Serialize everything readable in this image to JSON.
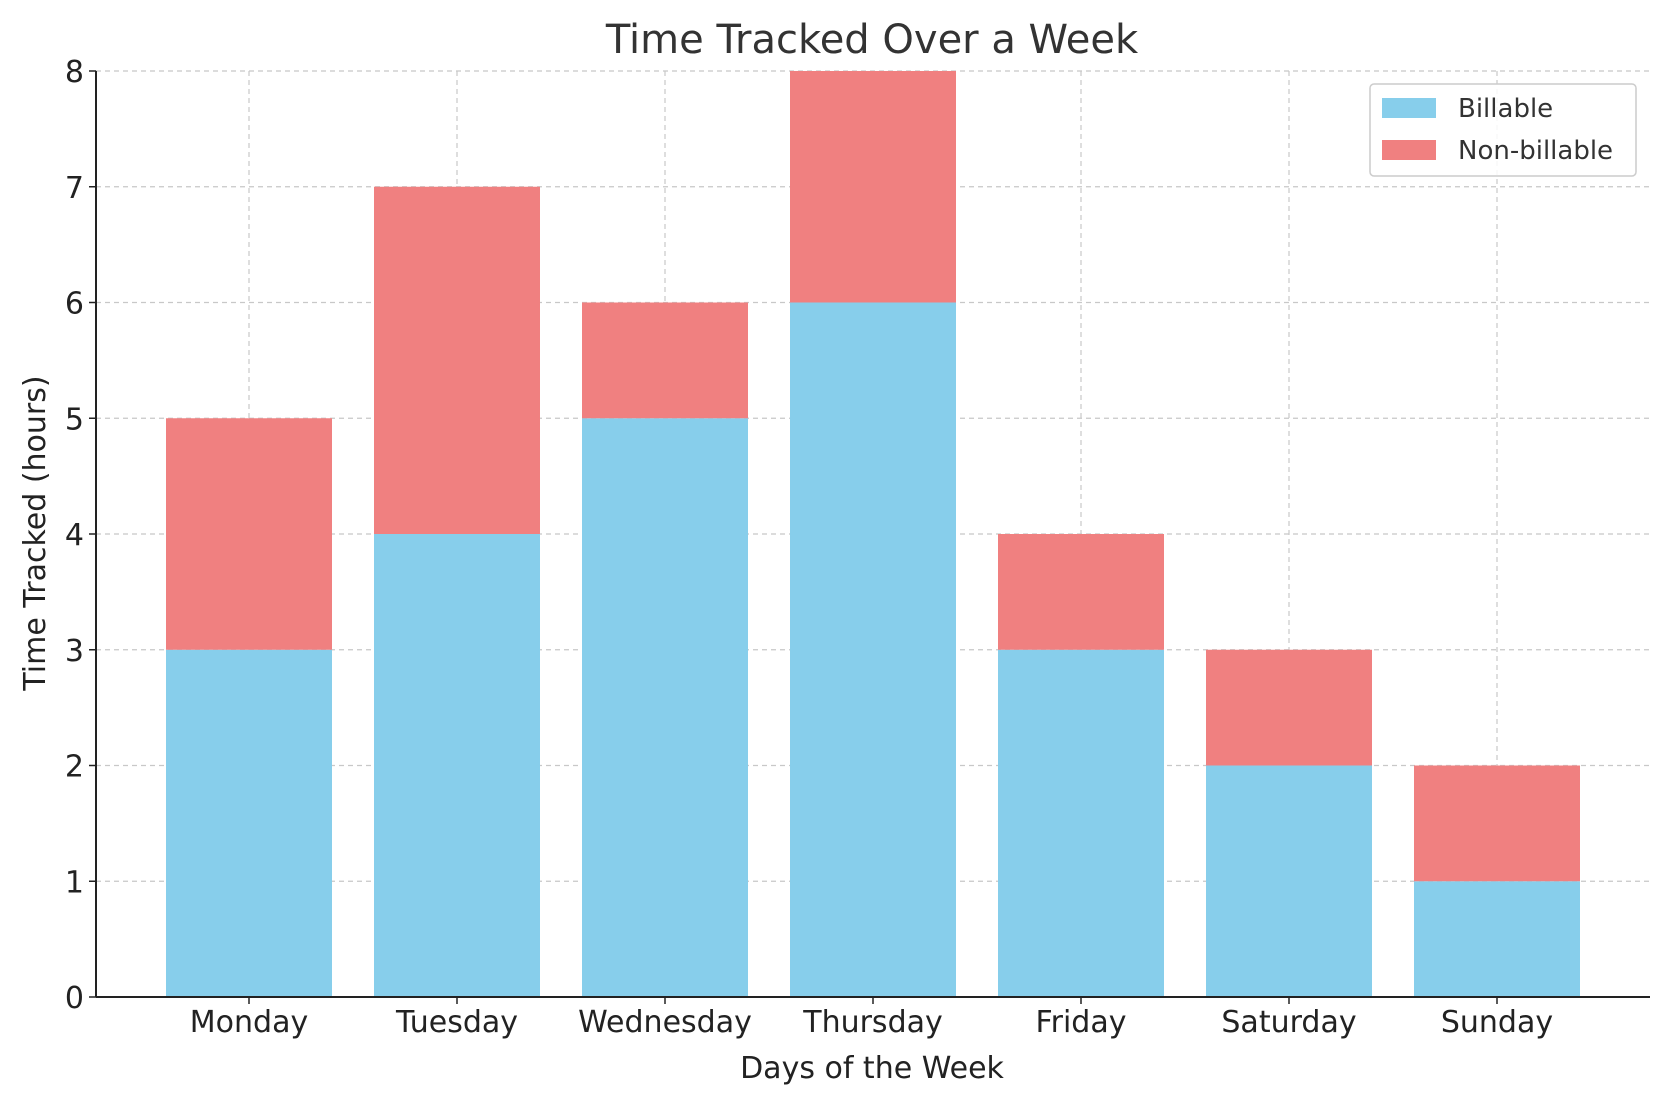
{
  "chart_data": {
    "type": "bar",
    "stacked": true,
    "title": "Time Tracked Over a Week",
    "xlabel": "Days of the Week",
    "ylabel": "Time Tracked (hours)",
    "categories": [
      "Monday",
      "Tuesday",
      "Wednesday",
      "Thursday",
      "Friday",
      "Saturday",
      "Sunday"
    ],
    "series": [
      {
        "name": "Billable",
        "color": "#87CEEB",
        "values": [
          3,
          4,
          5,
          6,
          3,
          2,
          1
        ]
      },
      {
        "name": "Non-billable",
        "color": "#F08080",
        "values": [
          2,
          3,
          1,
          2,
          1,
          1,
          1
        ]
      }
    ],
    "ylim": [
      0,
      8
    ],
    "yticks": [
      "0",
      "1",
      "2",
      "3",
      "4",
      "5",
      "6",
      "7",
      "8"
    ],
    "grid": true,
    "legend_position": "top-right"
  }
}
